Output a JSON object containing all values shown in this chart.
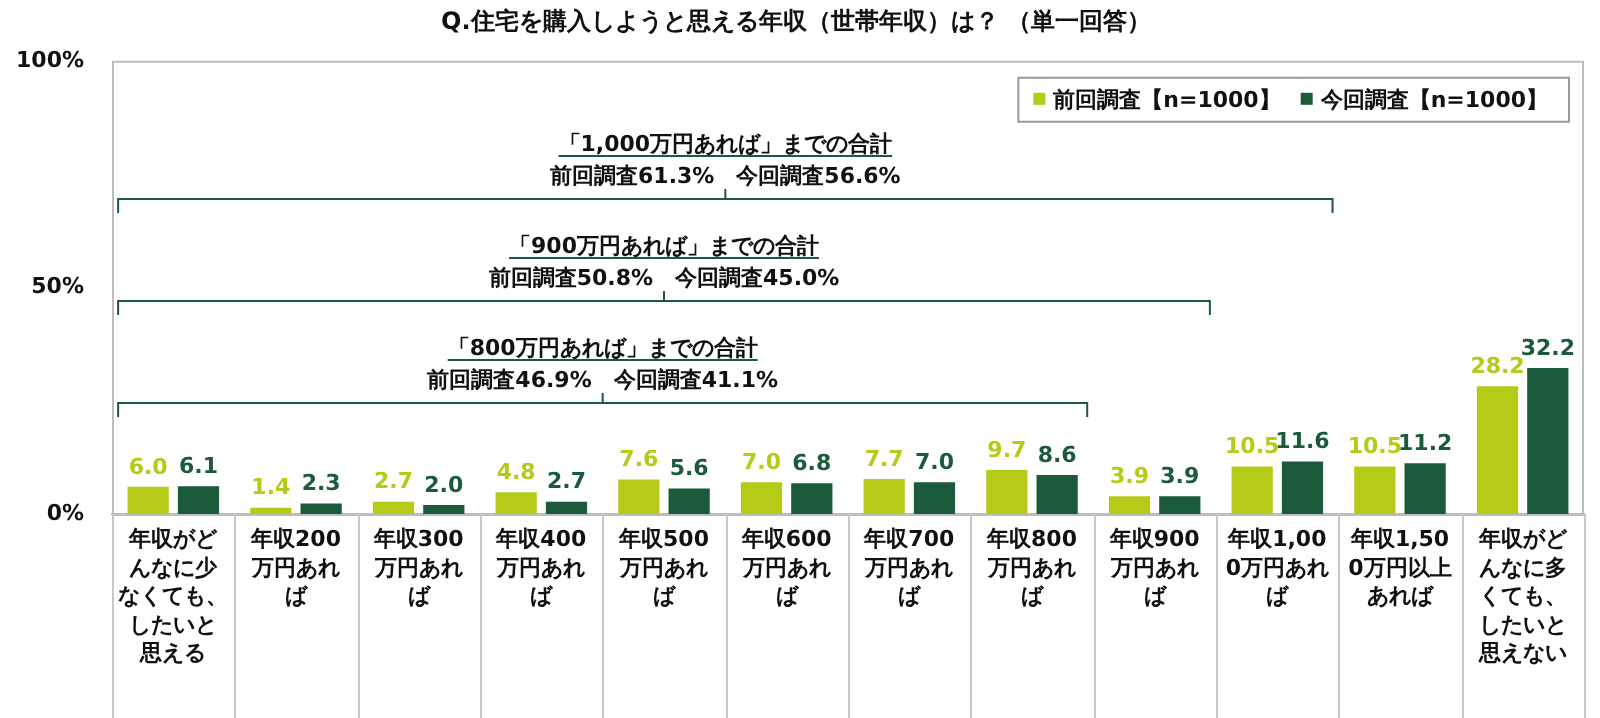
{
  "chart_data": {
    "type": "bar",
    "title": "Q.住宅を購入しようと思える年収（世帯年収）は？ （単一回答）",
    "categories": [
      "年収がどんなに少なくても、したいと思える",
      "年収200万円あれば",
      "年収300万円あれば",
      "年収400万円あれば",
      "年収500万円あれば",
      "年収600万円あれば",
      "年収700万円あれば",
      "年収800万円あれば",
      "年収900万円あれば",
      "年収1,000万円あれば",
      "年収1,500万円以上あれば",
      "年収がどんなに多くても、したいと思えない"
    ],
    "series": [
      {
        "name": "前回調査【n=1000】",
        "color": "#b5cb17",
        "values": [
          6.0,
          1.4,
          2.7,
          4.8,
          7.6,
          7.0,
          7.7,
          9.7,
          3.9,
          10.5,
          10.5,
          28.2
        ],
        "value_labels": [
          "6.0",
          "1.4",
          "2.7",
          "4.8",
          "7.6",
          "7.0",
          "7.7",
          "9.7",
          "3.9",
          "10.5",
          "10.5",
          "28.2"
        ]
      },
      {
        "name": "今回調査【n=1000】",
        "color": "#1b5a3a",
        "values": [
          6.1,
          2.3,
          2.0,
          2.7,
          5.6,
          6.8,
          7.0,
          8.6,
          3.9,
          11.6,
          11.2,
          32.2
        ],
        "value_labels": [
          "6.1",
          "2.3",
          "2.0",
          "2.7",
          "5.6",
          "6.8",
          "7.0",
          "8.6",
          "3.9",
          "11.6",
          "11.2",
          "32.2"
        ]
      }
    ],
    "ylim": [
      0,
      100
    ],
    "yticks": [
      {
        "value": 0,
        "label": "0%"
      },
      {
        "value": 50,
        "label": "50%"
      },
      {
        "value": 100,
        "label": "100%"
      }
    ],
    "annotations": [
      "「1,000万円あれば」までの合計",
      "前回調査61.3%　今回調査56.6%",
      "「900万円あれば」までの合計",
      "前回調査50.8%　今回調査45.0%",
      "「800万円あれば」までの合計",
      "前回調査46.9%　今回調査41.1%"
    ],
    "grid": false,
    "legend": "top right"
  }
}
